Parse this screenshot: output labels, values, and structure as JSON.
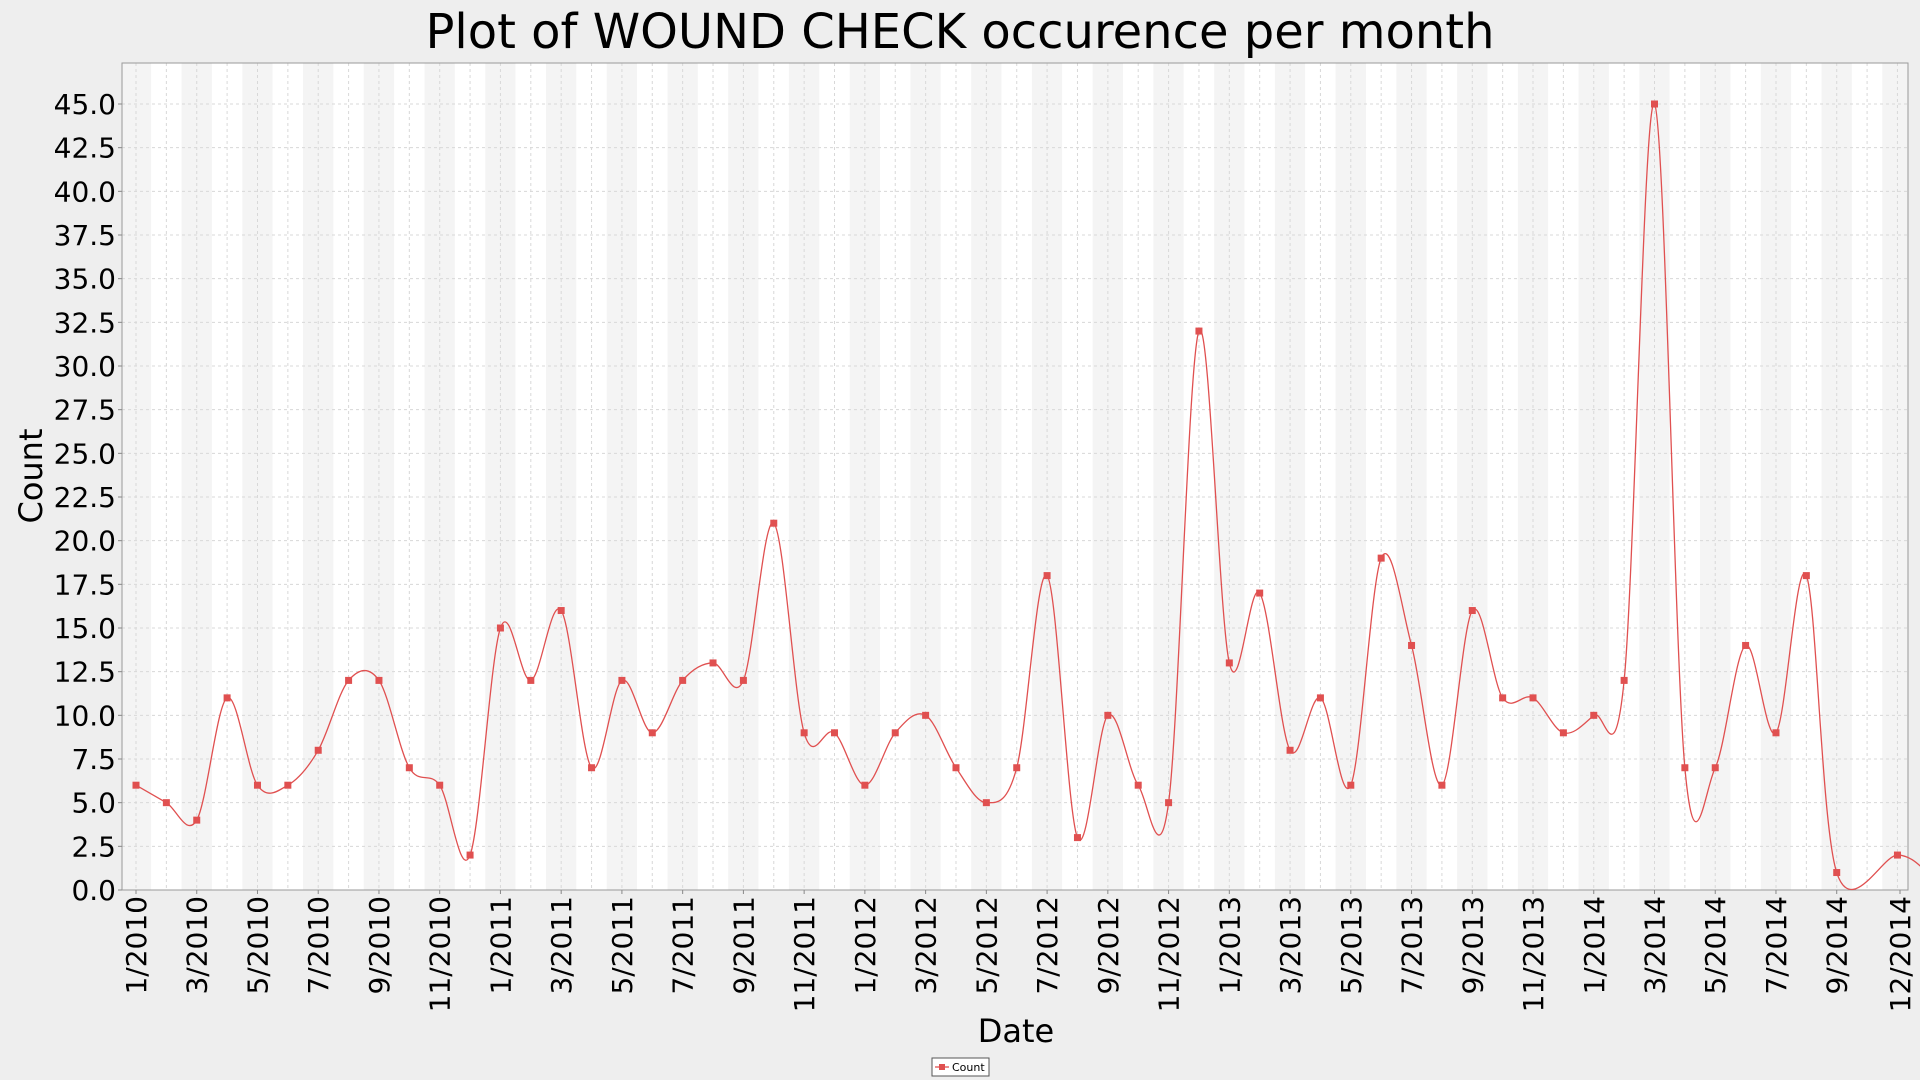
{
  "chart_data": {
    "type": "line",
    "title": "Plot of WOUND CHECK occurence per month",
    "xlabel": "Date",
    "ylabel": "Count",
    "ylim": [
      0,
      45
    ],
    "yticks": [
      "0.0",
      "2.5",
      "5.0",
      "7.5",
      "10.0",
      "12.5",
      "15.0",
      "17.5",
      "20.0",
      "22.5",
      "25.0",
      "27.5",
      "30.0",
      "32.5",
      "35.0",
      "37.5",
      "40.0",
      "42.5",
      "45.0"
    ],
    "grid": true,
    "legend": "bottom-center",
    "colors": {
      "series": "#e05050",
      "bandLight": "#f4f4f4",
      "bandWhite": "#ffffff",
      "background": "#eeeeee",
      "grid": "#d8d8d8"
    },
    "x_tick_labels": [
      "1/2010",
      "3/2010",
      "5/2010",
      "7/2010",
      "9/2010",
      "11/2010",
      "1/2011",
      "3/2011",
      "5/2011",
      "7/2011",
      "9/2011",
      "11/2011",
      "1/2012",
      "3/2012",
      "5/2012",
      "7/2012",
      "9/2012",
      "11/2012",
      "1/2013",
      "3/2013",
      "5/2013",
      "7/2013",
      "9/2013",
      "11/2013",
      "1/2014",
      "3/2014",
      "5/2014",
      "7/2014",
      "9/2014",
      "12/2014"
    ],
    "x": [
      "1/2010",
      "2/2010",
      "3/2010",
      "4/2010",
      "5/2010",
      "6/2010",
      "7/2010",
      "8/2010",
      "9/2010",
      "10/2010",
      "11/2010",
      "12/2010",
      "1/2011",
      "2/2011",
      "3/2011",
      "4/2011",
      "5/2011",
      "6/2011",
      "7/2011",
      "8/2011",
      "9/2011",
      "10/2011",
      "11/2011",
      "12/2011",
      "1/2012",
      "2/2012",
      "3/2012",
      "4/2012",
      "5/2012",
      "6/2012",
      "7/2012",
      "8/2012",
      "9/2012",
      "10/2012",
      "11/2012",
      "12/2012",
      "1/2013",
      "2/2013",
      "3/2013",
      "4/2013",
      "5/2013",
      "6/2013",
      "7/2013",
      "8/2013",
      "9/2013",
      "10/2013",
      "11/2013",
      "12/2013",
      "1/2014",
      "2/2014",
      "3/2014",
      "4/2014",
      "5/2014",
      "6/2014",
      "7/2014",
      "8/2014",
      "9/2014",
      "10/2014",
      "11/2014",
      "12/2014"
    ],
    "series": [
      {
        "name": "Count",
        "values": [
          6,
          5,
          4,
          11,
          6,
          6,
          8,
          12,
          12,
          7,
          6,
          2,
          15,
          12,
          16,
          7,
          12,
          9,
          12,
          13,
          12,
          21,
          9,
          9,
          6,
          9,
          10,
          7,
          5,
          7,
          18,
          3,
          10,
          6,
          5,
          32,
          13,
          17,
          8,
          11,
          6,
          19,
          14,
          6,
          16,
          11,
          11,
          9,
          10,
          12,
          45,
          7,
          7,
          14,
          9,
          18,
          1,
          null,
          2,
          1
        ]
      }
    ]
  }
}
